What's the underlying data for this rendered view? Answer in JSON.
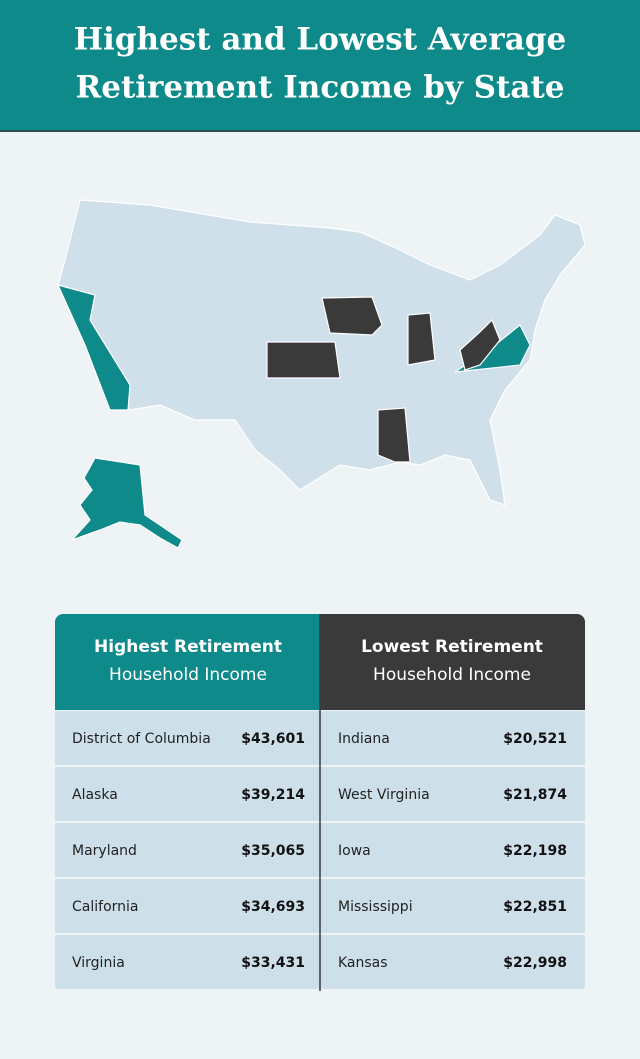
{
  "header": {
    "title_lines": [
      "Highest and Lowest Average",
      "Retirement Income by State"
    ]
  },
  "table": {
    "headers": [
      {
        "bold": "Highest Retirement",
        "regular": "Household Income"
      },
      {
        "bold": "Lowest Retirement",
        "regular": "Household Income"
      }
    ],
    "highest": [
      [
        "District of Columbia",
        "$43,601"
      ],
      [
        "Alaska",
        "$39,214"
      ],
      [
        "Maryland",
        "$35,065"
      ],
      [
        "California",
        "$34,693"
      ],
      [
        "Virginia",
        "$33,431"
      ]
    ],
    "lowest": [
      [
        "Indiana",
        "$20,521"
      ],
      [
        "West Virginia",
        "$21,874"
      ],
      [
        "Iowa",
        "$22,198"
      ],
      [
        "Mississippi",
        "$22,851"
      ],
      [
        "Kansas",
        "$22,998"
      ]
    ]
  }
}
